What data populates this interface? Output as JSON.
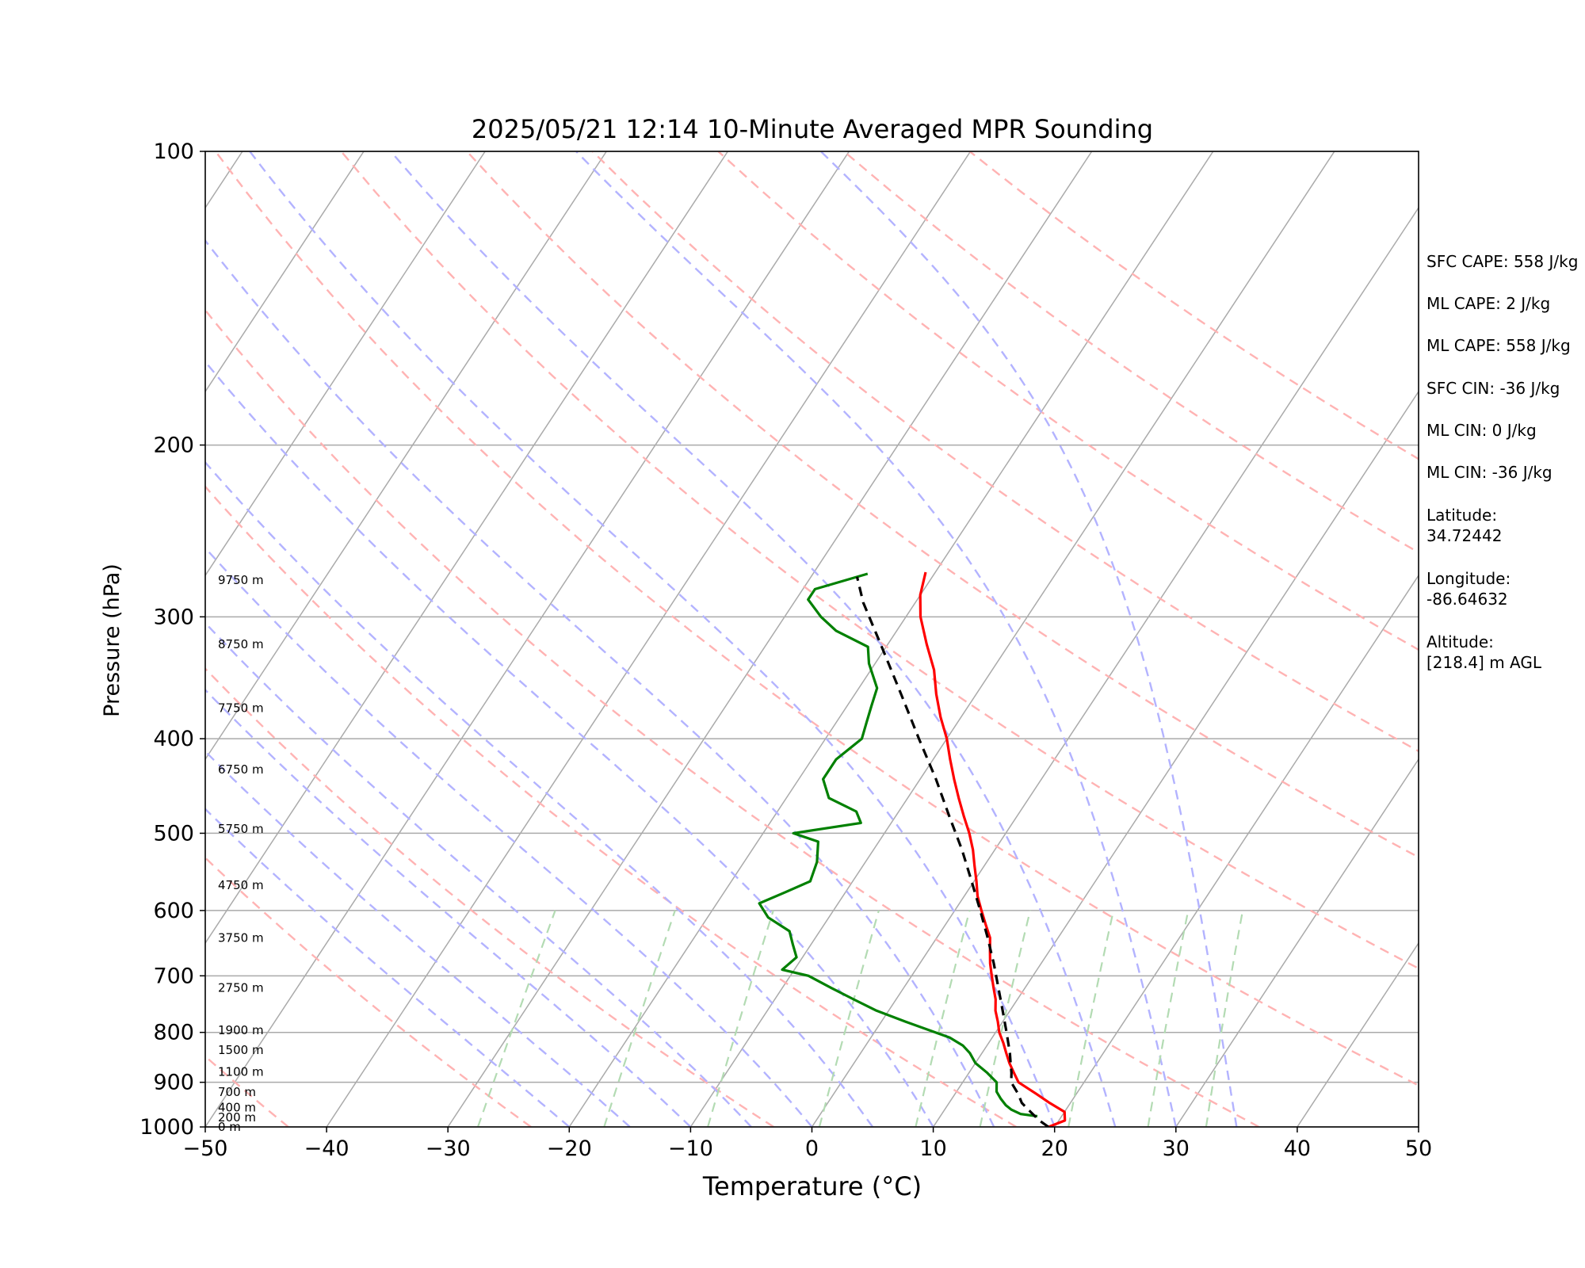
{
  "chart_data": {
    "type": "line",
    "title": "2025/05/21 12:14 10-Minute Averaged MPR Sounding",
    "xlabel": "Temperature (°C)",
    "ylabel": "Pressure (hPa)",
    "xlim": [
      -50,
      50
    ],
    "ylim": [
      1000,
      100
    ],
    "y_scale": "log",
    "x_ticks": [
      "−50",
      "−40",
      "−30",
      "−20",
      "−10",
      "0",
      "10",
      "20",
      "30",
      "40",
      "50"
    ],
    "y_ticks": [
      100,
      200,
      300,
      400,
      500,
      600,
      700,
      800,
      900,
      1000
    ],
    "grid": true,
    "skew": "skew-T log-P diagram with dry adiabats, moist adiabats and mixing ratio lines",
    "height_labels": [
      {
        "p": 1000,
        "label": "0 m"
      },
      {
        "p": 978,
        "label": "200 m"
      },
      {
        "p": 955,
        "label": "400 m"
      },
      {
        "p": 921,
        "label": "700 m"
      },
      {
        "p": 878,
        "label": "1100 m"
      },
      {
        "p": 834,
        "label": "1500 m"
      },
      {
        "p": 796,
        "label": "1900 m"
      },
      {
        "p": 720,
        "label": "2750 m"
      },
      {
        "p": 640,
        "label": "3750 m"
      },
      {
        "p": 565,
        "label": "4750 m"
      },
      {
        "p": 495,
        "label": "5750 m"
      },
      {
        "p": 430,
        "label": "6750 m"
      },
      {
        "p": 372,
        "label": "7750 m"
      },
      {
        "p": 320,
        "label": "8750 m"
      },
      {
        "p": 275,
        "label": "9750 m"
      }
    ],
    "series": [
      {
        "key": "temperature",
        "color": "#ff0000",
        "style": "solid",
        "points": [
          [
            1000,
            19.5
          ],
          [
            985,
            20.5
          ],
          [
            965,
            20.0
          ],
          [
            945,
            18.3
          ],
          [
            925,
            16.7
          ],
          [
            900,
            14.6
          ],
          [
            880,
            13.7
          ],
          [
            860,
            12.8
          ],
          [
            840,
            12.0
          ],
          [
            820,
            11.2
          ],
          [
            800,
            10.3
          ],
          [
            780,
            9.6
          ],
          [
            760,
            8.8
          ],
          [
            740,
            8.2
          ],
          [
            720,
            7.4
          ],
          [
            700,
            6.6
          ],
          [
            680,
            5.8
          ],
          [
            660,
            5.1
          ],
          [
            640,
            4.4
          ],
          [
            620,
            3.3
          ],
          [
            600,
            2.2
          ],
          [
            580,
            1.1
          ],
          [
            560,
            0.2
          ],
          [
            540,
            -0.8
          ],
          [
            520,
            -1.8
          ],
          [
            500,
            -3.0
          ],
          [
            480,
            -4.4
          ],
          [
            460,
            -5.8
          ],
          [
            440,
            -7.2
          ],
          [
            420,
            -8.6
          ],
          [
            400,
            -10.0
          ],
          [
            380,
            -11.7
          ],
          [
            360,
            -13.3
          ],
          [
            340,
            -14.8
          ],
          [
            320,
            -16.8
          ],
          [
            300,
            -18.8
          ],
          [
            285,
            -20.0
          ],
          [
            270,
            -20.8
          ]
        ]
      },
      {
        "key": "dewpoint",
        "color": "#008000",
        "style": "solid",
        "points": [
          [
            975,
            18.0
          ],
          [
            970,
            16.5
          ],
          [
            960,
            15.5
          ],
          [
            950,
            14.8
          ],
          [
            935,
            14.0
          ],
          [
            920,
            13.3
          ],
          [
            900,
            12.8
          ],
          [
            880,
            11.5
          ],
          [
            860,
            10.0
          ],
          [
            840,
            9.0
          ],
          [
            825,
            8.0
          ],
          [
            810,
            6.5
          ],
          [
            780,
            2.0
          ],
          [
            760,
            -1.0
          ],
          [
            740,
            -3.5
          ],
          [
            720,
            -6.0
          ],
          [
            700,
            -8.5
          ],
          [
            690,
            -11.0
          ],
          [
            670,
            -10.5
          ],
          [
            650,
            -11.5
          ],
          [
            630,
            -12.5
          ],
          [
            610,
            -15.0
          ],
          [
            590,
            -16.5
          ],
          [
            575,
            -15.0
          ],
          [
            560,
            -13.5
          ],
          [
            535,
            -14.0
          ],
          [
            510,
            -15.0
          ],
          [
            500,
            -17.5
          ],
          [
            488,
            -12.5
          ],
          [
            475,
            -13.5
          ],
          [
            460,
            -16.5
          ],
          [
            440,
            -18.0
          ],
          [
            420,
            -18.0
          ],
          [
            400,
            -17.0
          ],
          [
            385,
            -17.5
          ],
          [
            370,
            -18.0
          ],
          [
            355,
            -18.5
          ],
          [
            335,
            -20.5
          ],
          [
            322,
            -21.5
          ],
          [
            310,
            -25.0
          ],
          [
            300,
            -27.0
          ],
          [
            288,
            -29.0
          ],
          [
            281,
            -29.0
          ],
          [
            271,
            -25.5
          ]
        ]
      },
      {
        "key": "parcel",
        "color": "#000000",
        "style": "dashed",
        "points": [
          [
            1000,
            19.5
          ],
          [
            985,
            18.4
          ],
          [
            965,
            17.2
          ],
          [
            945,
            16.0
          ],
          [
            925,
            15.2
          ],
          [
            900,
            14.0
          ],
          [
            880,
            13.5
          ],
          [
            860,
            12.9
          ],
          [
            840,
            12.3
          ],
          [
            800,
            10.9
          ],
          [
            760,
            9.4
          ],
          [
            720,
            7.8
          ],
          [
            680,
            6.1
          ],
          [
            640,
            4.2
          ],
          [
            600,
            2.1
          ],
          [
            560,
            -0.2
          ],
          [
            520,
            -2.7
          ],
          [
            480,
            -5.6
          ],
          [
            440,
            -8.7
          ],
          [
            400,
            -12.3
          ],
          [
            360,
            -16.2
          ],
          [
            320,
            -20.6
          ],
          [
            290,
            -24.3
          ],
          [
            273,
            -26.2
          ]
        ]
      }
    ],
    "dry_adiabats_theta_K": [
      210,
      230,
      250,
      270,
      290,
      310,
      330,
      350,
      370,
      390,
      410,
      430,
      450
    ],
    "moist_adiabats_thetaw_C": [
      -20,
      -15,
      -10,
      -5,
      0,
      5,
      10,
      15,
      20,
      25,
      30,
      35
    ],
    "mixing_ratio_g_per_kg": [
      0.4,
      1,
      2,
      4,
      7,
      10,
      16,
      24,
      32
    ]
  },
  "side_panel": {
    "sfc_cape": "SFC CAPE: 558 J/kg",
    "ml_cape_1": "ML CAPE: 2 J/kg",
    "ml_cape_2": "ML CAPE: 558 J/kg",
    "sfc_cin": "SFC CIN: -36 J/kg",
    "ml_cin_1": "ML CIN: 0 J/kg",
    "ml_cin_2": "ML CIN: -36 J/kg",
    "latitude": "Latitude:\n34.72442",
    "longitude": "Longitude:\n-86.64632",
    "altitude": "Altitude:\n[218.4] m AGL"
  },
  "colors": {
    "isotherm_isobar": "#aaaaaa",
    "dry_adiabat": "#ffb3b3",
    "moist_adiabat": "#b3b3ff",
    "mixing_ratio": "#b3dbb3",
    "temperature": "#ff0000",
    "dewpoint": "#008000",
    "parcel": "#000000"
  }
}
